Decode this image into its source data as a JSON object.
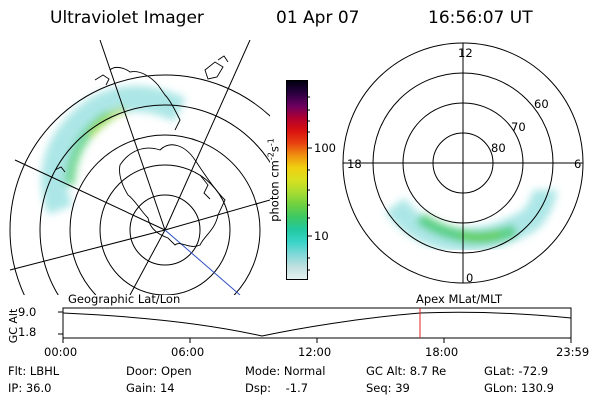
{
  "header": {
    "instrument": "Ultraviolet Imager",
    "date": "01 Apr 07",
    "time": "16:56:07 UT"
  },
  "colorbar": {
    "ticks": [
      "100",
      "10"
    ],
    "unit_main": "photon cm",
    "unit_exp1": "-2",
    "unit_s": "s",
    "unit_exp2": "-1",
    "colors": [
      "#e6f0f0",
      "#bfe0e0",
      "#7fd8d8",
      "#38d4c8",
      "#22c8a0",
      "#3cc864",
      "#6ed040",
      "#a8dc30",
      "#d8e020",
      "#f0d010",
      "#f09010",
      "#e84010",
      "#d81010",
      "#b00030",
      "#6a0060",
      "#2a0040",
      "#000010"
    ]
  },
  "left_map": {
    "title": "Geographic Lat/Lon"
  },
  "right_map": {
    "title": "Apex MLat/MLT",
    "mlt_labels": [
      "12",
      "18",
      "6",
      "0"
    ],
    "lat_labels": [
      "60",
      "70",
      "80"
    ]
  },
  "timeline": {
    "ylabel": "GC Alt",
    "yticks": [
      "9.0",
      "1.8"
    ],
    "xticks": [
      "00:00",
      "06:00",
      "12:00",
      "18:00",
      "23:59"
    ],
    "marker_color": "#e02020"
  },
  "info": {
    "filter": "Flt: LBHL",
    "door": "Door: Open",
    "mode": "Mode: Normal",
    "gc_alt": "GC Alt: 8.7 Re",
    "glat": "GLat: -72.9",
    "ip": "IP: 36.0",
    "gain": "Gain: 14",
    "dsp": "Dsp:    -1.7",
    "seq": "Seq: 39",
    "glon": "GLon: 130.9"
  }
}
